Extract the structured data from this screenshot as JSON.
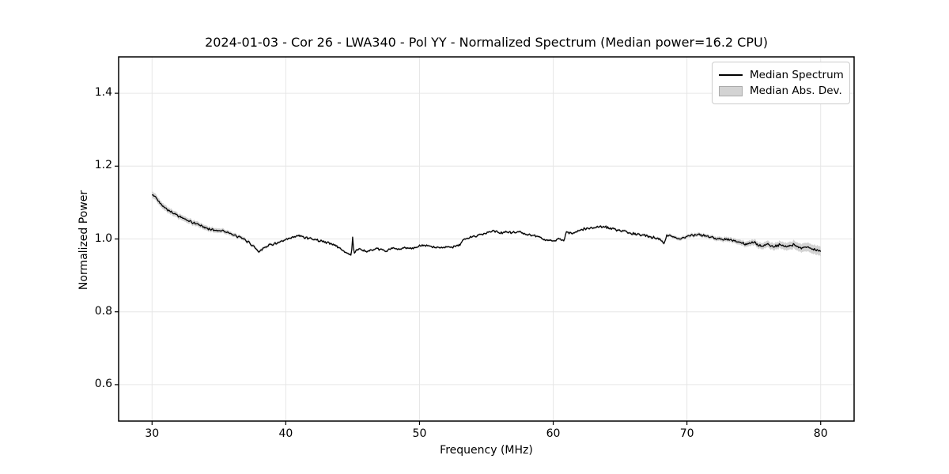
{
  "figure": {
    "background": "#ffffff"
  },
  "chart_data": {
    "type": "line",
    "title": "2024-01-03 - Cor 26 - LWA340 - Pol YY - Normalized Spectrum (Median power=16.2 CPU)",
    "xlabel": "Frequency (MHz)",
    "ylabel": "Normalized Power",
    "xlim": [
      27.5,
      82.5
    ],
    "ylim": [
      0.5,
      1.5
    ],
    "xticks": [
      30,
      40,
      50,
      60,
      70,
      80
    ],
    "xtick_labels": [
      "30",
      "40",
      "50",
      "60",
      "70",
      "80"
    ],
    "yticks": [
      0.6,
      0.8,
      1.0,
      1.2,
      1.4
    ],
    "ytick_labels": [
      "0.6",
      "0.8",
      "1.0",
      "1.2",
      "1.4"
    ],
    "grid": true,
    "grid_color": "#e6e6e6",
    "frame_color": "#000000",
    "noise_amplitude": 0.0032,
    "legend": {
      "position": "upper right",
      "items": [
        {
          "label": "Median Spectrum",
          "type": "line",
          "color": "#000000"
        },
        {
          "label": "Median Abs. Dev.",
          "type": "patch",
          "color": "#d3d3d3",
          "edge": "#aaaaaa"
        }
      ]
    },
    "series": [
      {
        "name": "Median Spectrum",
        "color": "#000000",
        "x": [
          30.0,
          30.2,
          30.5,
          31.0,
          31.5,
          32.0,
          32.5,
          33.0,
          33.5,
          34.0,
          34.5,
          35.0,
          35.3,
          35.6,
          36.0,
          36.5,
          37.0,
          37.5,
          38.0,
          38.3,
          38.7,
          39.0,
          39.5,
          40.0,
          40.5,
          41.0,
          41.5,
          42.0,
          42.5,
          43.0,
          43.5,
          44.0,
          44.5,
          44.9,
          45.0,
          45.1,
          45.5,
          46.0,
          46.5,
          47.0,
          47.5,
          48.0,
          48.5,
          49.0,
          49.5,
          50.0,
          50.5,
          51.0,
          51.5,
          52.0,
          52.5,
          53.0,
          53.3,
          53.8,
          54.3,
          55.0,
          55.5,
          56.0,
          56.5,
          57.0,
          57.5,
          58.0,
          58.5,
          59.0,
          59.5,
          60.0,
          60.5,
          60.8,
          61.0,
          61.5,
          62.0,
          62.5,
          63.0,
          63.5,
          64.0,
          64.5,
          65.0,
          65.5,
          66.0,
          66.5,
          67.0,
          67.5,
          68.0,
          68.3,
          68.5,
          69.0,
          69.5,
          70.0,
          70.5,
          71.0,
          71.5,
          72.0,
          72.5,
          73.0,
          73.5,
          74.0,
          74.5,
          75.0,
          75.5,
          76.0,
          76.5,
          77.0,
          77.5,
          78.0,
          78.5,
          79.0,
          79.5,
          80.0
        ],
        "y": [
          1.12,
          1.118,
          1.103,
          1.085,
          1.073,
          1.063,
          1.053,
          1.045,
          1.04,
          1.03,
          1.026,
          1.022,
          1.025,
          1.018,
          1.012,
          1.005,
          0.997,
          0.983,
          0.965,
          0.975,
          0.982,
          0.986,
          0.99,
          0.997,
          1.004,
          1.009,
          1.004,
          1.0,
          0.996,
          0.991,
          0.986,
          0.976,
          0.962,
          0.956,
          1.004,
          0.962,
          0.974,
          0.965,
          0.97,
          0.972,
          0.967,
          0.975,
          0.971,
          0.977,
          0.974,
          0.98,
          0.982,
          0.978,
          0.975,
          0.98,
          0.977,
          0.984,
          0.998,
          1.004,
          1.01,
          1.016,
          1.024,
          1.015,
          1.02,
          1.017,
          1.02,
          1.012,
          1.009,
          1.005,
          0.997,
          0.994,
          1.0,
          0.997,
          1.019,
          1.014,
          1.024,
          1.029,
          1.03,
          1.035,
          1.032,
          1.027,
          1.022,
          1.019,
          1.014,
          1.011,
          1.009,
          1.004,
          0.999,
          0.988,
          1.012,
          1.005,
          1.001,
          1.007,
          1.01,
          1.012,
          1.007,
          1.004,
          1.0,
          1.0,
          0.995,
          0.99,
          0.985,
          0.991,
          0.98,
          0.986,
          0.978,
          0.985,
          0.979,
          0.985,
          0.975,
          0.978,
          0.971,
          0.965
        ]
      }
    ],
    "band": {
      "name": "Median Abs. Dev.",
      "color": "#d3d3d3",
      "x": [
        30,
        31,
        32,
        33,
        34,
        35,
        36,
        37,
        38,
        40,
        45,
        50,
        55,
        60,
        65,
        68,
        70,
        72,
        74,
        75,
        76,
        77,
        78,
        79,
        80
      ],
      "halfwidth": [
        0.009,
        0.008,
        0.0075,
        0.007,
        0.0068,
        0.0062,
        0.0055,
        0.0048,
        0.0042,
        0.0035,
        0.003,
        0.003,
        0.003,
        0.003,
        0.0035,
        0.004,
        0.005,
        0.0055,
        0.007,
        0.008,
        0.009,
        0.01,
        0.011,
        0.012,
        0.013
      ]
    }
  }
}
